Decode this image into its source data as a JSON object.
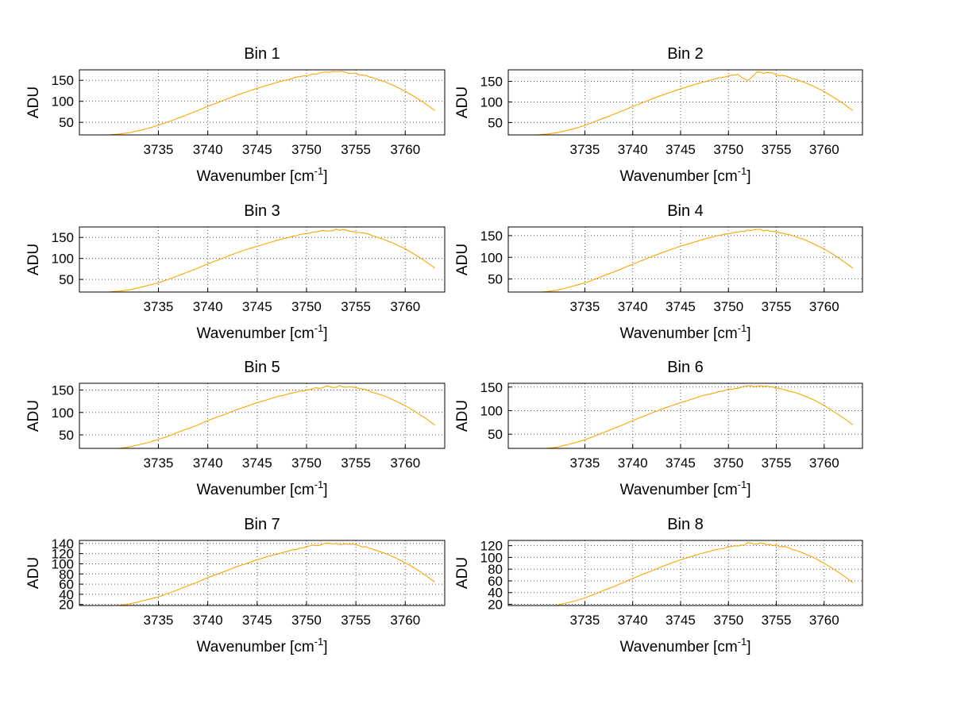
{
  "figure": {
    "background": "#ffffff",
    "line_color": "#FFA500",
    "grid_color": "#555555",
    "axis_color": "#000000"
  },
  "chart_data": [
    {
      "type": "line",
      "title": "Bin 1",
      "xlabel_base": "Wavenumber [cm",
      "xlabel_sup": "-1",
      "xlabel_close": "]",
      "ylabel": "ADU",
      "grid": true,
      "legend": "none",
      "xlim": [
        3727,
        3764
      ],
      "ylim": [
        20,
        175
      ],
      "xticks": [
        3735,
        3740,
        3745,
        3750,
        3755,
        3760
      ],
      "yticks": [
        50,
        100,
        150
      ],
      "x_start": 3728,
      "x_step": 1,
      "values": [
        16,
        18,
        20,
        22,
        25,
        30,
        36,
        43,
        51,
        60,
        69,
        78,
        88,
        97,
        106,
        115,
        123,
        131,
        138,
        145,
        151,
        157,
        162,
        166,
        169,
        170,
        169,
        166,
        161,
        154,
        146,
        136,
        124,
        110,
        95,
        78
      ]
    },
    {
      "type": "line",
      "title": "Bin 2",
      "xlabel_base": "Wavenumber [cm",
      "xlabel_sup": "-1",
      "xlabel_close": "]",
      "ylabel": "ADU",
      "grid": true,
      "legend": "none",
      "xlim": [
        3727,
        3764
      ],
      "ylim": [
        20,
        178
      ],
      "xticks": [
        3735,
        3740,
        3745,
        3750,
        3755,
        3760
      ],
      "yticks": [
        50,
        100,
        150
      ],
      "x_start": 3728,
      "x_step": 1,
      "values": [
        16,
        18,
        20,
        22,
        25,
        30,
        36,
        43,
        52,
        61,
        70,
        79,
        89,
        98,
        107,
        116,
        124,
        132,
        139,
        146,
        152,
        158,
        163,
        166,
        152,
        171,
        170,
        167,
        162,
        155,
        147,
        137,
        125,
        111,
        96,
        79
      ]
    },
    {
      "type": "line",
      "title": "Bin 3",
      "xlabel_base": "Wavenumber [cm",
      "xlabel_sup": "-1",
      "xlabel_close": "]",
      "ylabel": "ADU",
      "grid": true,
      "legend": "none",
      "xlim": [
        3727,
        3764
      ],
      "ylim": [
        20,
        175
      ],
      "xticks": [
        3735,
        3740,
        3745,
        3750,
        3755,
        3760
      ],
      "yticks": [
        50,
        100,
        150
      ],
      "x_start": 3728,
      "x_step": 1,
      "values": [
        16,
        18,
        20,
        22,
        25,
        30,
        36,
        42,
        50,
        59,
        68,
        77,
        87,
        96,
        105,
        114,
        122,
        129,
        136,
        143,
        149,
        155,
        160,
        164,
        167,
        168,
        167,
        164,
        159,
        152,
        144,
        134,
        123,
        109,
        94,
        77
      ]
    },
    {
      "type": "line",
      "title": "Bin 4",
      "xlabel_base": "Wavenumber [cm",
      "xlabel_sup": "-1",
      "xlabel_close": "]",
      "ylabel": "ADU",
      "grid": true,
      "legend": "none",
      "xlim": [
        3727,
        3764
      ],
      "ylim": [
        20,
        170
      ],
      "xticks": [
        3735,
        3740,
        3745,
        3750,
        3755,
        3760
      ],
      "yticks": [
        50,
        100,
        150
      ],
      "x_start": 3728,
      "x_step": 1,
      "values": [
        15,
        17,
        19,
        21,
        24,
        29,
        35,
        41,
        49,
        58,
        66,
        75,
        84,
        93,
        102,
        110,
        118,
        126,
        132,
        139,
        145,
        151,
        155,
        159,
        162,
        163,
        162,
        159,
        154,
        148,
        140,
        130,
        119,
        106,
        91,
        75
      ]
    },
    {
      "type": "line",
      "title": "Bin 5",
      "xlabel_base": "Wavenumber [cm",
      "xlabel_sup": "-1",
      "xlabel_close": "]",
      "ylabel": "ADU",
      "grid": true,
      "legend": "none",
      "xlim": [
        3727,
        3764
      ],
      "ylim": [
        20,
        165
      ],
      "xticks": [
        3735,
        3740,
        3745,
        3750,
        3755,
        3760
      ],
      "yticks": [
        50,
        100,
        150
      ],
      "x_start": 3728,
      "x_step": 1,
      "values": [
        15,
        17,
        19,
        20,
        23,
        28,
        33,
        40,
        47,
        56,
        64,
        72,
        82,
        90,
        98,
        107,
        114,
        122,
        128,
        135,
        140,
        146,
        150,
        154,
        157,
        158,
        157,
        154,
        150,
        143,
        136,
        126,
        115,
        102,
        88,
        72
      ]
    },
    {
      "type": "line",
      "title": "Bin 6",
      "xlabel_base": "Wavenumber [cm",
      "xlabel_sup": "-1",
      "xlabel_close": "]",
      "ylabel": "ADU",
      "grid": true,
      "legend": "none",
      "xlim": [
        3727,
        3764
      ],
      "ylim": [
        20,
        158
      ],
      "xticks": [
        3735,
        3740,
        3745,
        3750,
        3755,
        3760
      ],
      "yticks": [
        50,
        100,
        150
      ],
      "x_start": 3728,
      "x_step": 1,
      "values": [
        14,
        16,
        18,
        20,
        22,
        27,
        32,
        38,
        46,
        54,
        62,
        70,
        79,
        87,
        95,
        103,
        110,
        117,
        123,
        130,
        135,
        140,
        145,
        148,
        151,
        152,
        151,
        148,
        144,
        138,
        131,
        122,
        111,
        98,
        85,
        70
      ]
    },
    {
      "type": "line",
      "title": "Bin 7",
      "xlabel_base": "Wavenumber [cm",
      "xlabel_sup": "-1",
      "xlabel_close": "]",
      "ylabel": "ADU",
      "grid": true,
      "legend": "none",
      "xlim": [
        3727,
        3764
      ],
      "ylim": [
        18,
        146
      ],
      "xticks": [
        3735,
        3740,
        3745,
        3750,
        3755,
        3760
      ],
      "yticks": [
        20,
        40,
        60,
        80,
        100,
        120,
        140
      ],
      "x_start": 3728,
      "x_step": 1,
      "values": [
        13,
        15,
        16,
        18,
        21,
        25,
        30,
        35,
        42,
        49,
        57,
        64,
        73,
        80,
        87,
        95,
        101,
        108,
        114,
        119,
        124,
        129,
        133,
        137,
        139,
        140,
        139,
        137,
        133,
        127,
        120,
        112,
        102,
        91,
        78,
        64
      ]
    },
    {
      "type": "line",
      "title": "Bin 8",
      "xlabel_base": "Wavenumber [cm",
      "xlabel_sup": "-1",
      "xlabel_close": "]",
      "ylabel": "ADU",
      "grid": true,
      "legend": "none",
      "xlim": [
        3727,
        3764
      ],
      "ylim": [
        18,
        129
      ],
      "xticks": [
        3735,
        3740,
        3745,
        3750,
        3755,
        3760
      ],
      "yticks": [
        20,
        40,
        60,
        80,
        100,
        120
      ],
      "x_start": 3728,
      "x_step": 1,
      "values": [
        12,
        13,
        15,
        16,
        18,
        22,
        26,
        31,
        37,
        44,
        50,
        57,
        64,
        71,
        77,
        84,
        90,
        96,
        101,
        106,
        110,
        114,
        118,
        121,
        123,
        124,
        123,
        121,
        117,
        112,
        106,
        99,
        90,
        80,
        69,
        57
      ]
    }
  ]
}
